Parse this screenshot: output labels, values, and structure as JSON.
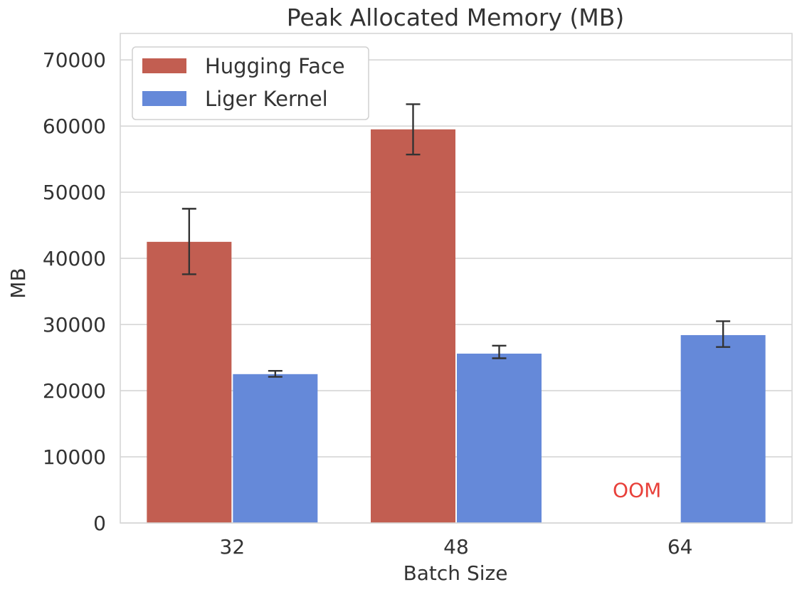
{
  "chart_data": {
    "type": "bar",
    "title": "Peak Allocated Memory (MB)",
    "xlabel": "Batch Size",
    "ylabel": "MB",
    "categories": [
      "32",
      "48",
      "64"
    ],
    "ylim": [
      0,
      74000
    ],
    "yticks": [
      0,
      10000,
      20000,
      30000,
      40000,
      50000,
      60000,
      70000
    ],
    "grid": true,
    "legend_position": "top-left",
    "series": [
      {
        "name": "Hugging Face",
        "color": "#c25e51",
        "values": [
          42500,
          59500,
          null
        ],
        "error_low": [
          37600,
          55700,
          null
        ],
        "error_high": [
          47500,
          63300,
          null
        ]
      },
      {
        "name": "Liger Kernel",
        "color": "#6589d9",
        "values": [
          22500,
          25600,
          28400
        ],
        "error_low": [
          22100,
          24900,
          26600
        ],
        "error_high": [
          23000,
          26800,
          30500
        ]
      }
    ],
    "annotations": [
      {
        "text": "OOM",
        "category": "64",
        "series": "Hugging Face",
        "y": 5000,
        "color": "#e8403a"
      }
    ]
  }
}
